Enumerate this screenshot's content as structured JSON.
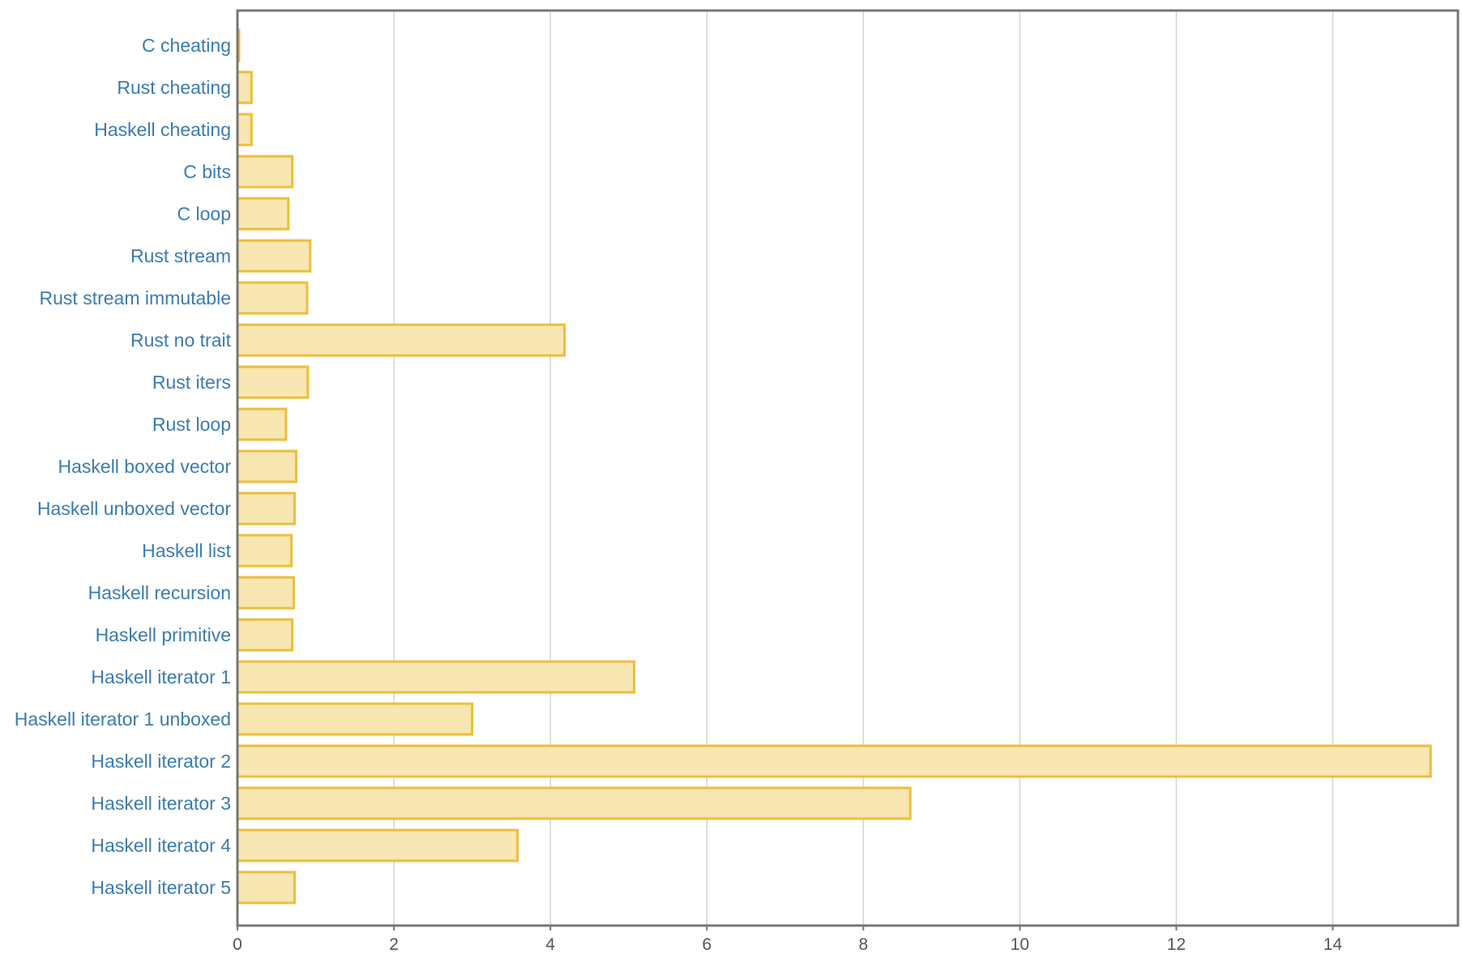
{
  "chart_data": {
    "type": "bar",
    "orientation": "horizontal",
    "title": "",
    "xlabel": "",
    "ylabel": "",
    "categories": [
      "C cheating",
      "Rust cheating",
      "Haskell cheating",
      "C bits",
      "C loop",
      "Rust stream",
      "Rust stream immutable",
      "Rust no trait",
      "Rust iters",
      "Rust loop",
      "Haskell boxed vector",
      "Haskell unboxed vector",
      "Haskell list",
      "Haskell recursion",
      "Haskell primitive",
      "Haskell iterator 1",
      "Haskell iterator 1 unboxed",
      "Haskell iterator 2",
      "Haskell iterator 3",
      "Haskell iterator 4",
      "Haskell iterator 5"
    ],
    "values": [
      0.02,
      0.18,
      0.18,
      0.7,
      0.65,
      0.93,
      0.89,
      4.18,
      0.9,
      0.62,
      0.75,
      0.73,
      0.69,
      0.72,
      0.7,
      5.07,
      3.0,
      15.25,
      8.6,
      3.58,
      0.73
    ],
    "xlim": [
      0,
      15.6
    ],
    "xticks": [
      0,
      2,
      4,
      6,
      8,
      10,
      12,
      14
    ],
    "xtick_labels": [
      "0",
      "2",
      "4",
      "6",
      "8",
      "10",
      "12",
      "14"
    ],
    "grid": "vertical",
    "legend": "none"
  },
  "colors": {
    "bar_fill": "#f8e6b3",
    "bar_stroke": "#ecbe3a",
    "category_label": "#3b7bb0",
    "tick_label": "#555555",
    "grid": "#d3d3d3",
    "frame": "#777777"
  }
}
